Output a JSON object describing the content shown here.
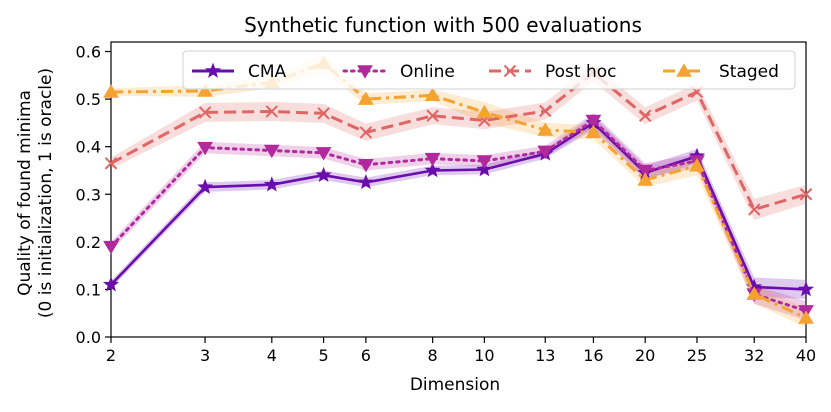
{
  "chart_data": {
    "type": "line",
    "title": "Synthetic function with 500 evaluations",
    "xlabel": "Dimension",
    "ylabel_line1": "Quality of found minima",
    "ylabel_line2": "(0 is initialization, 1 is oracle)",
    "x_scale": "log",
    "x": [
      2,
      3,
      4,
      5,
      6,
      8,
      10,
      13,
      16,
      20,
      25,
      32,
      40
    ],
    "x_tick_labels": [
      "2",
      "3",
      "4",
      "5",
      "6",
      "8",
      "10",
      "13",
      "16",
      "20",
      "25",
      "32",
      "40"
    ],
    "ylim": [
      0.0,
      0.62
    ],
    "y_ticks": [
      0.0,
      0.1,
      0.2,
      0.3,
      0.4,
      0.5,
      0.6
    ],
    "y_tick_labels": [
      "0.0",
      "0.1",
      "0.2",
      "0.3",
      "0.4",
      "0.5",
      "0.6"
    ],
    "grid": false,
    "legend_position": "top",
    "series": [
      {
        "name": "CMA",
        "color": "#6a0dad",
        "linestyle": "solid",
        "marker": "star",
        "values": [
          0.11,
          0.315,
          0.32,
          0.34,
          0.325,
          0.35,
          0.352,
          0.385,
          0.45,
          0.345,
          0.38,
          0.105,
          0.1
        ],
        "band": [
          0.008,
          0.01,
          0.01,
          0.01,
          0.01,
          0.01,
          0.01,
          0.01,
          0.015,
          0.015,
          0.015,
          0.02,
          0.02
        ]
      },
      {
        "name": "Online",
        "color": "#b02a9c",
        "linestyle": "dotted",
        "marker": "triangle-down",
        "values": [
          0.19,
          0.398,
          0.392,
          0.387,
          0.362,
          0.375,
          0.37,
          0.39,
          0.455,
          0.35,
          0.37,
          0.09,
          0.055
        ],
        "band": [
          0.01,
          0.012,
          0.012,
          0.012,
          0.012,
          0.012,
          0.012,
          0.012,
          0.015,
          0.015,
          0.015,
          0.02,
          0.02
        ]
      },
      {
        "name": "Post hoc",
        "color": "#e06565",
        "linestyle": "dashed",
        "marker": "x",
        "values": [
          0.365,
          0.472,
          0.474,
          0.47,
          0.43,
          0.465,
          0.455,
          0.475,
          0.555,
          0.465,
          0.515,
          0.268,
          0.3
        ],
        "band": [
          0.012,
          0.02,
          0.02,
          0.02,
          0.018,
          0.018,
          0.018,
          0.018,
          0.018,
          0.018,
          0.018,
          0.022,
          0.02
        ]
      },
      {
        "name": "Staged",
        "color": "#f5a330",
        "linestyle": "dashdot",
        "marker": "triangle-up",
        "values": [
          0.515,
          0.517,
          0.535,
          0.575,
          0.5,
          0.508,
          0.472,
          0.435,
          0.43,
          0.33,
          0.36,
          0.09,
          0.04
        ],
        "band": [
          0.008,
          0.012,
          0.012,
          0.018,
          0.012,
          0.012,
          0.022,
          0.015,
          0.015,
          0.015,
          0.02,
          0.02,
          0.02
        ]
      }
    ]
  }
}
